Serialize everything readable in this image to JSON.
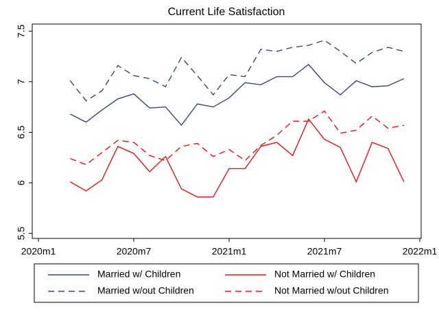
{
  "chart_data": {
    "type": "line",
    "title": "Current Life Satisfaction",
    "x": [
      "2020m3",
      "2020m4",
      "2020m5",
      "2020m6",
      "2020m7",
      "2020m8",
      "2020m9",
      "2020m10",
      "2020m11",
      "2020m12",
      "2021m1",
      "2021m2",
      "2021m3",
      "2021m4",
      "2021m5",
      "2021m6",
      "2021m7",
      "2021m8",
      "2021m9",
      "2021m10",
      "2021m11",
      "2021m12"
    ],
    "series": [
      {
        "name": "Married w/ Children",
        "color": "#3b4670",
        "dashed": false,
        "values": [
          6.68,
          6.6,
          6.72,
          6.83,
          6.88,
          6.74,
          6.75,
          6.57,
          6.78,
          6.75,
          6.84,
          6.99,
          6.97,
          7.05,
          7.05,
          7.17,
          6.99,
          6.87,
          7.01,
          6.95,
          6.96,
          7.03
        ]
      },
      {
        "name": "Not Married w/ Children",
        "color": "#e8121c",
        "dashed": false,
        "values": [
          6.01,
          5.92,
          6.03,
          6.36,
          6.29,
          6.11,
          6.26,
          5.94,
          5.86,
          5.86,
          6.14,
          6.14,
          6.36,
          6.4,
          6.27,
          6.63,
          6.43,
          6.35,
          6.01,
          6.4,
          6.34,
          6.01
        ]
      },
      {
        "name": "Married w/out Children",
        "color": "#3b4670",
        "dashed": true,
        "values": [
          7.01,
          6.81,
          6.91,
          7.16,
          7.06,
          7.03,
          6.95,
          7.24,
          7.06,
          6.87,
          7.07,
          7.05,
          7.32,
          7.3,
          7.34,
          7.36,
          7.41,
          7.3,
          7.18,
          7.29,
          7.34,
          7.3
        ]
      },
      {
        "name": "Not Married w/out Children",
        "color": "#e8121c",
        "dashed": true,
        "values": [
          6.24,
          6.18,
          6.3,
          6.42,
          6.4,
          6.27,
          6.22,
          6.36,
          6.39,
          6.26,
          6.33,
          6.22,
          6.37,
          6.47,
          6.61,
          6.61,
          6.71,
          6.49,
          6.52,
          6.66,
          6.54,
          6.57
        ]
      }
    ],
    "xlim": [
      "2020m1",
      "2022m1"
    ],
    "xticks": [
      "2020m1",
      "2020m7",
      "2021m1",
      "2021m7",
      "2022m1"
    ],
    "ylim": [
      5.45,
      7.57
    ],
    "yticks": [
      5.5,
      6,
      6.5,
      7,
      7.5
    ],
    "legend": "bottom"
  }
}
